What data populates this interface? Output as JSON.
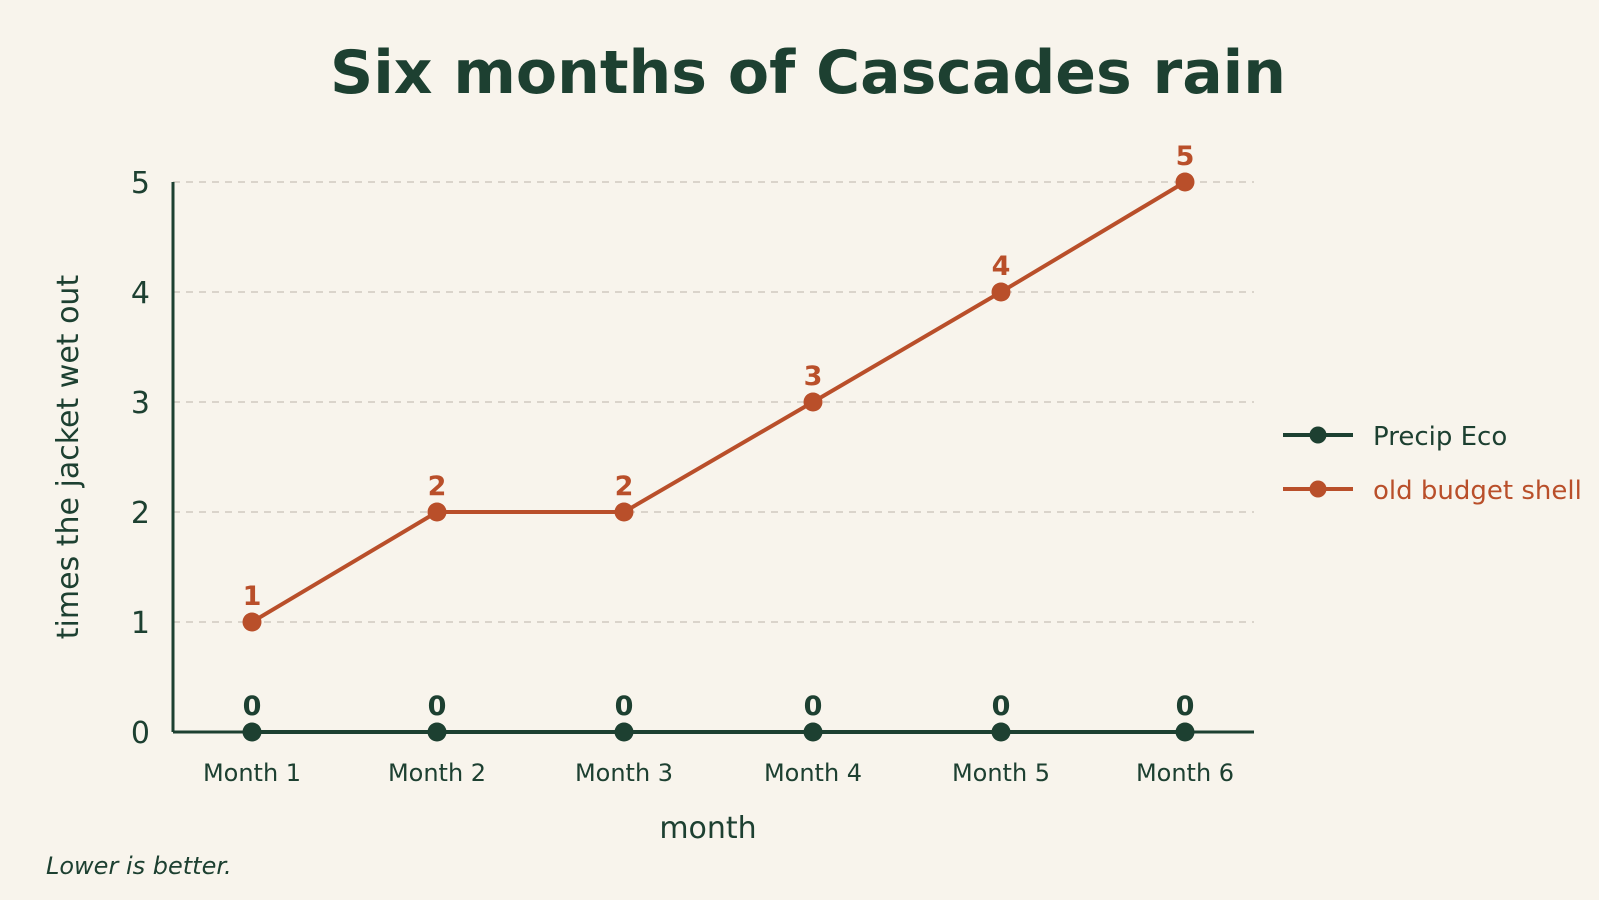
{
  "chart_data": {
    "type": "line",
    "title": "Six months of Cascades rain",
    "xlabel": "month",
    "ylabel": "times the jacket wet out",
    "categories": [
      "Month 1",
      "Month 2",
      "Month 3",
      "Month 4",
      "Month 5",
      "Month 6"
    ],
    "ylim": [
      0,
      5
    ],
    "yticks": [
      0,
      1,
      2,
      3,
      4,
      5
    ],
    "grid": true,
    "legend_position": "right",
    "series": [
      {
        "name": "Precip Eco",
        "color": "#1d4031",
        "values": [
          0,
          0,
          0,
          0,
          0,
          0
        ]
      },
      {
        "name": "old budget shell",
        "color": "#b94f2a",
        "values": [
          1,
          2,
          2,
          3,
          4,
          5
        ]
      }
    ],
    "note": "Lower is better."
  }
}
